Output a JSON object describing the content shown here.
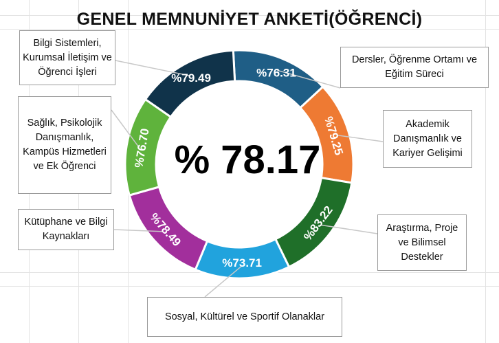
{
  "chart_data": {
    "type": "donut",
    "title": "GENEL MEMNUNİYET ANKETİ(ÖĞRENCİ)",
    "center_label": "% 78.17",
    "series": [
      {
        "category": "Dersler, Öğrenme Ortamı ve Eğitim Süreci",
        "value": 76.31,
        "label": "%76.31",
        "color": "#1F5E86"
      },
      {
        "category": "Akademik Danışmanlık ve Kariyer Gelişimi",
        "value": 79.25,
        "label": "%79.25",
        "color": "#EE7A33"
      },
      {
        "category": "Araştırma, Proje ve Bilimsel Destekler",
        "value": 83.22,
        "label": "%83.22",
        "color": "#1F6F29"
      },
      {
        "category": "Sosyal, Kültürel ve Sportif Olanaklar",
        "value": 73.71,
        "label": "%73.71",
        "color": "#21A3DD"
      },
      {
        "category": "Kütüphane ve Bilgi Kaynakları",
        "value": 78.49,
        "label": "%78.49",
        "color": "#A22F9C"
      },
      {
        "category": "Sağlık, Psikolojik Danışmanlık, Kampüs Hizmetleri ve Ek Öğrenci",
        "value": 76.7,
        "label": "%76.70",
        "color": "#5FB33C"
      },
      {
        "category": "Bilgi Sistemleri, Kurumsal İletişim ve Öğrenci İşleri",
        "value": 79.49,
        "label": "%79.49",
        "color": "#10334A"
      }
    ]
  }
}
